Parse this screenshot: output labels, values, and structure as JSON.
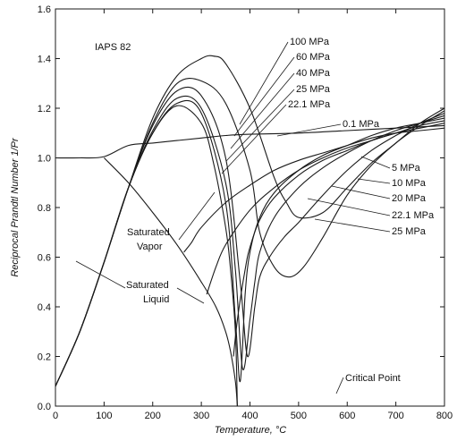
{
  "chart_data": {
    "type": "line",
    "title": "IAPS 82",
    "xlabel": "Temperature, °C",
    "ylabel": "Reciprocal Prandtl Number 1/Pr",
    "xlim": [
      0,
      800
    ],
    "ylim": [
      0.0,
      1.6
    ],
    "x_ticks": [
      "0",
      "100",
      "200",
      "300",
      "400",
      "500",
      "600",
      "700",
      "800"
    ],
    "y_ticks": [
      "0.0",
      "0.2",
      "0.4",
      "0.6",
      "0.8",
      "1.0",
      "1.2",
      "1.4",
      "1.6"
    ],
    "grid": false,
    "series": [
      {
        "name": "0.1 MPa",
        "x": [
          0,
          50,
          100,
          150,
          200,
          250,
          300,
          350,
          400,
          500,
          600,
          700,
          800
        ],
        "y": [
          1.0,
          1.0,
          1.005,
          1.05,
          1.06,
          1.07,
          1.08,
          1.09,
          1.095,
          1.1,
          1.11,
          1.12,
          1.13
        ]
      },
      {
        "name": "5 MPa",
        "x": [
          264,
          280,
          300,
          350,
          400,
          450,
          500,
          550,
          600,
          650,
          700,
          750,
          800
        ],
        "y": [
          0.62,
          0.66,
          0.72,
          0.82,
          0.89,
          0.95,
          0.99,
          1.02,
          1.05,
          1.08,
          1.1,
          1.11,
          1.12
        ]
      },
      {
        "name": "10 MPa",
        "x": [
          311,
          330,
          350,
          400,
          450,
          500,
          550,
          600,
          650,
          700,
          750,
          800
        ],
        "y": [
          0.45,
          0.56,
          0.65,
          0.79,
          0.88,
          0.95,
          1.0,
          1.04,
          1.07,
          1.1,
          1.12,
          1.14
        ]
      },
      {
        "name": "20 MPa",
        "x": [
          366,
          375,
          390,
          400,
          420,
          450,
          500,
          550,
          600,
          650,
          700,
          750,
          800
        ],
        "y": [
          0.2,
          0.36,
          0.55,
          0.64,
          0.75,
          0.84,
          0.93,
          0.99,
          1.03,
          1.07,
          1.1,
          1.13,
          1.15
        ]
      },
      {
        "name": "22.1 MPa",
        "x": [
          0,
          50,
          100,
          150,
          200,
          250,
          300,
          350,
          370,
          380,
          390,
          400,
          420,
          450,
          500,
          550,
          600,
          650,
          700,
          750,
          800
        ],
        "y": [
          0.08,
          0.3,
          0.58,
          0.88,
          1.1,
          1.22,
          1.18,
          0.82,
          0.35,
          0.1,
          0.45,
          0.62,
          0.76,
          0.86,
          0.95,
          1.01,
          1.05,
          1.09,
          1.12,
          1.14,
          1.16
        ]
      },
      {
        "name": "25 MPa",
        "x": [
          0,
          50,
          100,
          150,
          200,
          250,
          300,
          350,
          370,
          385,
          400,
          410,
          420,
          450,
          500,
          550,
          600,
          650,
          700,
          750,
          800
        ],
        "y": [
          0.08,
          0.3,
          0.58,
          0.88,
          1.11,
          1.24,
          1.2,
          0.9,
          0.55,
          0.15,
          0.35,
          0.5,
          0.62,
          0.76,
          0.88,
          0.96,
          1.02,
          1.07,
          1.11,
          1.14,
          1.17
        ]
      },
      {
        "name": "40 MPa",
        "x": [
          0,
          50,
          100,
          150,
          200,
          250,
          300,
          350,
          380,
          395,
          410,
          420,
          440,
          470,
          500,
          550,
          600,
          650,
          700,
          750,
          800
        ],
        "y": [
          0.08,
          0.3,
          0.58,
          0.88,
          1.13,
          1.27,
          1.25,
          1.0,
          0.5,
          0.2,
          0.4,
          0.52,
          0.6,
          0.68,
          0.74,
          0.85,
          0.95,
          1.03,
          1.09,
          1.14,
          1.18
        ]
      },
      {
        "name": "60 MPa",
        "x": [
          0,
          50,
          100,
          150,
          200,
          250,
          300,
          350,
          400,
          420,
          450,
          480,
          510,
          550,
          600,
          650,
          700,
          750,
          800
        ],
        "y": [
          0.08,
          0.3,
          0.58,
          0.88,
          1.14,
          1.3,
          1.31,
          1.22,
          0.95,
          0.7,
          0.56,
          0.52,
          0.56,
          0.68,
          0.85,
          0.97,
          1.06,
          1.13,
          1.19
        ]
      },
      {
        "name": "100 MPa",
        "x": [
          0,
          50,
          100,
          150,
          200,
          250,
          300,
          325,
          350,
          400,
          450,
          475,
          500,
          550,
          600,
          650,
          700,
          750,
          800
        ],
        "y": [
          0.08,
          0.3,
          0.58,
          0.88,
          1.16,
          1.33,
          1.4,
          1.41,
          1.38,
          1.2,
          0.92,
          0.82,
          0.76,
          0.78,
          0.88,
          0.98,
          1.06,
          1.14,
          1.2
        ]
      },
      {
        "name": "Saturated Liquid",
        "x": [
          0,
          50,
          100,
          150,
          200,
          250,
          300,
          325,
          350,
          360,
          370,
          374
        ],
        "y": [
          0.08,
          0.3,
          0.58,
          0.88,
          1.1,
          1.21,
          1.14,
          0.98,
          0.72,
          0.55,
          0.3,
          0.0
        ]
      },
      {
        "name": "Saturated Vapor",
        "x": [
          100,
          150,
          200,
          250,
          300,
          330,
          350,
          360,
          370,
          374
        ],
        "y": [
          1.0,
          0.9,
          0.78,
          0.65,
          0.5,
          0.4,
          0.3,
          0.22,
          0.1,
          0.0
        ]
      }
    ],
    "annotations": [
      {
        "text": "100 MPa"
      },
      {
        "text": "60 MPa"
      },
      {
        "text": "40 MPa"
      },
      {
        "text": "25 MPa"
      },
      {
        "text": "22.1 MPa"
      },
      {
        "text": "0.1 MPa"
      },
      {
        "text": "5 MPa"
      },
      {
        "text": "10 MPa"
      },
      {
        "text": "20 MPa"
      },
      {
        "text": "22.1 MPa"
      },
      {
        "text": "25 MPa"
      },
      {
        "text": "Saturated"
      },
      {
        "text": "Vapor"
      },
      {
        "text": "Saturated"
      },
      {
        "text": "Liquid"
      },
      {
        "text": "Critical Point"
      }
    ]
  }
}
